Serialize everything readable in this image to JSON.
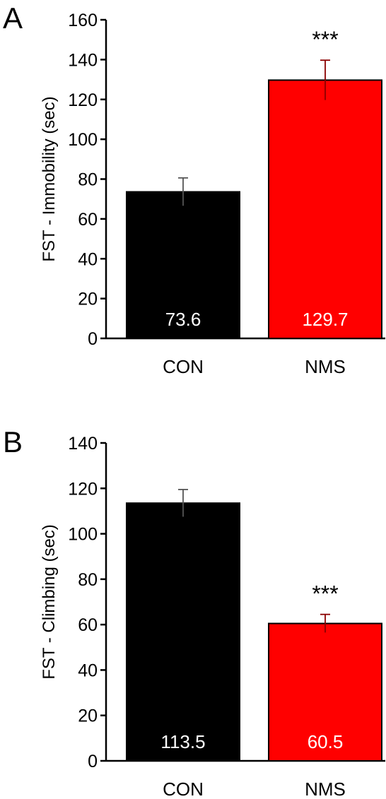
{
  "chart_data": [
    {
      "type": "bar",
      "panel_label": "A",
      "categories": [
        "CON",
        "NMS"
      ],
      "values": [
        73.6,
        129.7
      ],
      "errors": [
        7,
        10
      ],
      "value_labels": [
        "73.6",
        "129.7"
      ],
      "colors": [
        "#000000",
        "#ff0000"
      ],
      "significance": [
        "",
        "***"
      ],
      "title": "",
      "xlabel": "",
      "ylabel": "FST - Immobility (sec)",
      "ylim": [
        0,
        160
      ],
      "yticks": [
        0,
        20,
        40,
        60,
        80,
        100,
        120,
        140,
        160
      ],
      "grid": false,
      "legend": "none"
    },
    {
      "type": "bar",
      "panel_label": "B",
      "categories": [
        "CON",
        "NMS"
      ],
      "values": [
        113.5,
        60.5
      ],
      "errors": [
        6,
        4
      ],
      "value_labels": [
        "113.5",
        "60.5"
      ],
      "colors": [
        "#000000",
        "#ff0000"
      ],
      "significance": [
        "",
        "***"
      ],
      "title": "",
      "xlabel": "",
      "ylabel": "FST - Climbing (sec)",
      "ylim": [
        0,
        140
      ],
      "yticks": [
        0,
        20,
        40,
        60,
        80,
        100,
        120,
        140
      ],
      "grid": false,
      "legend": "none"
    }
  ]
}
